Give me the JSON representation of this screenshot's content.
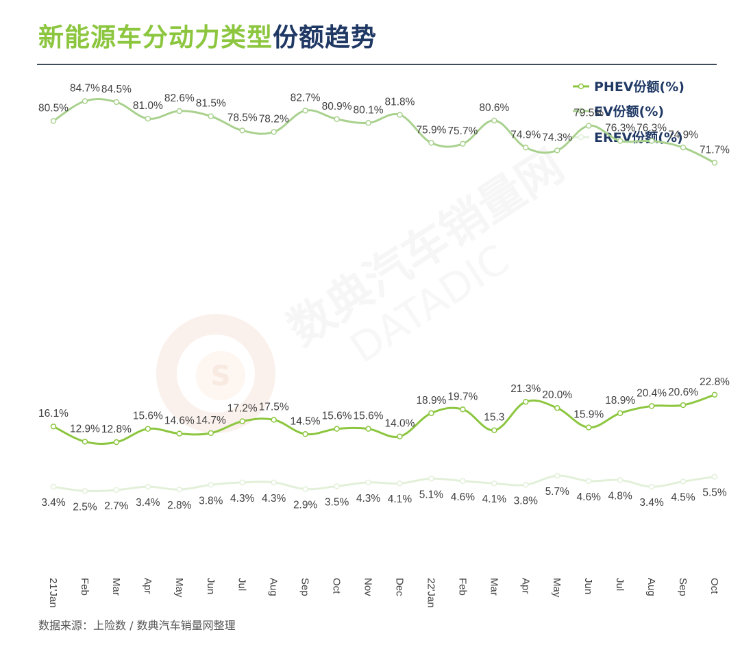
{
  "header": {
    "title_part1": "新能源车分动力类型",
    "title_part2": "份额趋势"
  },
  "footer": {
    "source": "数据来源：上险数 / 数典汽车销量网整理"
  },
  "watermark": {
    "text_cn": "数典汽车销量网",
    "text_en": "DATADIC"
  },
  "colors": {
    "phev": "#8cc63f",
    "ev": "#a9d18e",
    "erev": "#e2f0d9",
    "title_green": "#8cc63f",
    "title_navy": "#1f3864"
  },
  "chart_data": {
    "type": "line",
    "title": "新能源车分动力类型份额趋势",
    "legend_position": "top-right",
    "grid": false,
    "categories": [
      "21'Jan",
      "Feb",
      "Mar",
      "Apr",
      "May",
      "Jun",
      "Jul",
      "Aug",
      "Sep",
      "Oct",
      "Nov",
      "Dec",
      "22'Jan",
      "Feb",
      "Mar",
      "Apr",
      "May",
      "Jun",
      "Jul",
      "Aug",
      "Sep",
      "Oct"
    ],
    "series": [
      {
        "name": "PHEV份额(%)",
        "values": [
          16.1,
          12.9,
          12.8,
          15.6,
          14.6,
          14.7,
          17.2,
          17.5,
          14.5,
          15.6,
          15.6,
          14.0,
          18.9,
          19.7,
          15.3,
          21.3,
          20.0,
          15.9,
          18.9,
          20.4,
          20.6,
          22.8
        ],
        "labels": [
          "16.1%",
          "12.9%",
          "12.8%",
          "15.6%",
          "14.6%",
          "14.7%",
          "17.2%",
          "17.5%",
          "14.5%",
          "15.6%",
          "15.6%",
          "14.0%",
          "18.9%",
          "19.7%",
          "15.3",
          "21.3%",
          "20.0%",
          "15.9%",
          "18.9%",
          "20.4%",
          "20.6%",
          "22.8%"
        ]
      },
      {
        "name": "EV份额(%)",
        "values": [
          80.5,
          84.7,
          84.5,
          81.0,
          82.6,
          81.5,
          78.5,
          78.2,
          82.7,
          80.9,
          80.1,
          81.8,
          75.9,
          75.7,
          80.6,
          74.9,
          74.3,
          79.5,
          76.3,
          76.3,
          74.9,
          71.7
        ],
        "labels": [
          "80.5%",
          "84.7%",
          "84.5%",
          "81.0%",
          "82.6%",
          "81.5%",
          "78.5%",
          "78.2%",
          "82.7%",
          "80.9%",
          "80.1%",
          "81.8%",
          "75.9%",
          "75.7%",
          "80.6%",
          "74.9%",
          "74.3%",
          "79.5%",
          "76.3%",
          "76.3%",
          "74.9%",
          "71.7%"
        ]
      },
      {
        "name": "EREV份额(%)",
        "values": [
          3.4,
          2.5,
          2.7,
          3.4,
          2.8,
          3.8,
          4.3,
          4.3,
          2.9,
          3.5,
          4.3,
          4.1,
          5.1,
          4.6,
          4.1,
          3.8,
          5.7,
          4.6,
          4.8,
          3.4,
          4.5,
          5.5
        ],
        "labels": [
          "3.4%",
          "2.5%",
          "2.7%",
          "3.4%",
          "2.8%",
          "3.8%",
          "4.3%",
          "4.3%",
          "2.9%",
          "3.5%",
          "4.3%",
          "4.1%",
          "5.1%",
          "4.6%",
          "4.1%",
          "3.8%",
          "5.7%",
          "4.6%",
          "4.8%",
          "3.4%",
          "4.5%",
          "5.5%"
        ]
      }
    ]
  }
}
